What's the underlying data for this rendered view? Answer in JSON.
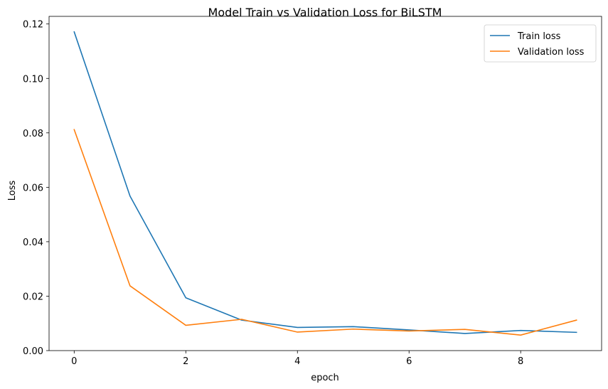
{
  "chart_data": {
    "type": "line",
    "title": "Model Train vs Validation Loss for BiLSTM",
    "xlabel": "epoch",
    "ylabel": "Loss",
    "x": [
      0,
      1,
      2,
      3,
      4,
      5,
      6,
      7,
      8,
      9
    ],
    "xlim": [
      -0.45,
      9.45
    ],
    "ylim": [
      0,
      0.1228
    ],
    "xticks": [
      0,
      2,
      4,
      6,
      8
    ],
    "xtick_labels": [
      "0",
      "2",
      "4",
      "6",
      "8"
    ],
    "yticks": [
      0,
      0.02,
      0.04,
      0.06,
      0.08,
      0.1,
      0.12
    ],
    "ytick_labels": [
      "0.00",
      "0.02",
      "0.04",
      "0.06",
      "0.08",
      "0.10",
      "0.12"
    ],
    "grid": false,
    "legend_position": "top-right",
    "series": [
      {
        "name": "Train loss",
        "color": "#1f77b4",
        "values": [
          0.1171,
          0.0568,
          0.0194,
          0.0112,
          0.0085,
          0.0088,
          0.0076,
          0.0063,
          0.0074,
          0.0067
        ]
      },
      {
        "name": "Validation loss",
        "color": "#ff7f0e",
        "values": [
          0.0812,
          0.0238,
          0.0093,
          0.0115,
          0.0068,
          0.0079,
          0.0072,
          0.0078,
          0.0057,
          0.0112
        ]
      }
    ]
  }
}
